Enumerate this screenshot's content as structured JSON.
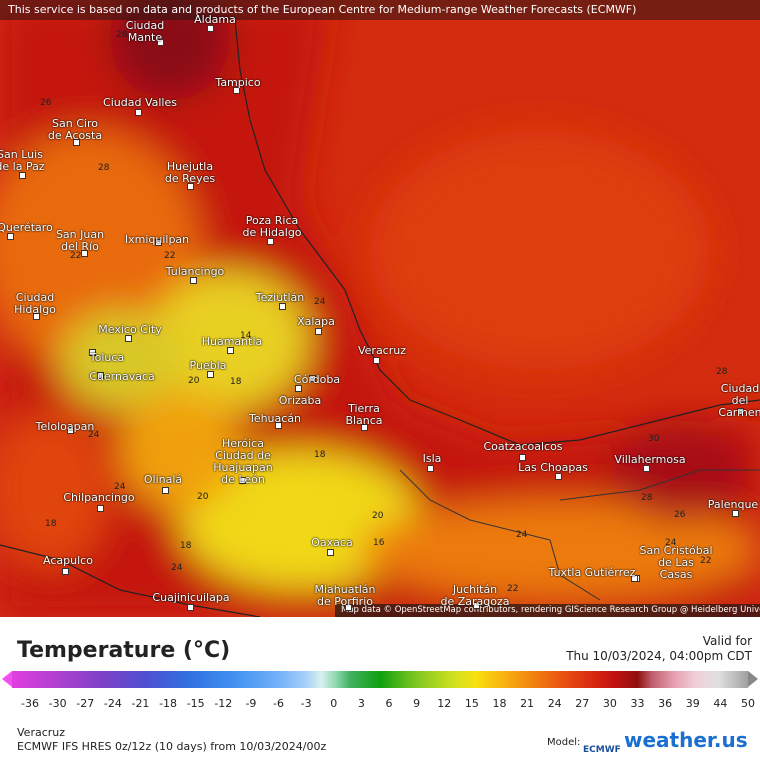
{
  "notice": "This service is based on data and products of the European Centre for Medium-range Weather Forecasts (ECMWF)",
  "map": {
    "cities": [
      "Aldama",
      "Ciudad\nMante",
      "Tampico",
      "Ciudad Valles",
      "San Ciro\nde Acosta",
      "Huejutla\nde Reyes",
      "Poza Rica\nde Hidalgo",
      "San Luis\nde la Paz",
      "Querétaro",
      "San Juan\ndel Río",
      "Ixmiquilpan",
      "Tulancingo",
      "Ciudad\nHidalgo",
      "Teziutlán",
      "Xalapa",
      "Mexico City",
      "Huamantla",
      "Veracruz",
      "Toluca",
      "Puebla",
      "Cuernavaca",
      "Córdoba",
      "Orizaba",
      "Tierra\nBlanca",
      "Tehuacán",
      "Teloloapan",
      "Heróica\nCiudad de\nHuajuapan\nde León",
      "Coatzacoalcos",
      "Isla",
      "Las Choapas",
      "Villahermosa",
      "Ciudad del\nCarmen",
      "Palenque",
      "Olinalá",
      "Chilpancingo",
      "Oaxaca",
      "San Cristóbal\nde Las\nCasas",
      "Acapulco",
      "Tuxtla Gutiérrez",
      "Juchitán\nde Zaragoza",
      "Miahuatlán\nde Porfirio",
      "Cuajinicuilapa"
    ],
    "contour_labels": [
      28,
      26,
      28,
      22,
      22,
      24,
      14,
      20,
      18,
      24,
      18,
      24,
      20,
      20,
      16,
      18,
      18,
      24,
      24,
      22,
      28,
      30,
      28,
      26,
      24,
      22
    ],
    "attribution": "Map data © OpenStreetMap contributors, rendering GIScience Research Group @ Heidelberg University"
  },
  "legend": {
    "title": "Temperature (°C)",
    "valid_label": "Valid for",
    "valid_time": "Thu 10/03/2024, 04:00pm CDT",
    "ticks": [
      -36,
      -30,
      -27,
      -24,
      -21,
      -18,
      -15,
      -12,
      -9,
      -6,
      -3,
      0,
      3,
      6,
      9,
      12,
      15,
      18,
      21,
      24,
      27,
      30,
      33,
      36,
      39,
      44,
      50
    ]
  },
  "footer": {
    "location": "Veracruz",
    "model_run": "ECMWF IFS HRES 0z/12z (10 days) from 10/03/2024/00z",
    "model_label": "Model:",
    "model_logo": "ECMWF",
    "brand": "weather.us"
  }
}
